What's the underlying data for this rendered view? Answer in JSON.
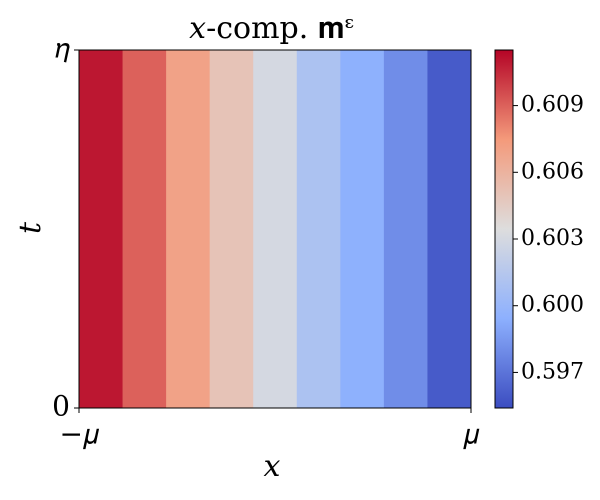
{
  "chart_data": {
    "type": "heatmap",
    "title": "𝑥-comp. 𝐦ᵋ",
    "x_label": "𝑥",
    "y_label": "𝑡",
    "xlim": [
      -1,
      1
    ],
    "xticks": [
      {
        "value": -1,
        "label": "−𝜇"
      },
      {
        "value": 1,
        "label": "𝜇"
      }
    ],
    "ylim": [
      0,
      1
    ],
    "yticks": [
      0,
      {
        "value": 1,
        "label": "𝜂"
      }
    ],
    "values": [
      0.611,
      0.609,
      0.607,
      0.605,
      0.603,
      0.601,
      0.5995,
      0.598,
      0.596
    ],
    "colormap": "coolwarm",
    "clim": [
      0.5954,
      0.6115
    ],
    "cticks": [
      0.597,
      0.6,
      0.603,
      0.606,
      0.609
    ],
    "cticks_labels": [
      "0.597",
      "0.600",
      "0.603",
      "0.606",
      "0.609"
    ]
  }
}
